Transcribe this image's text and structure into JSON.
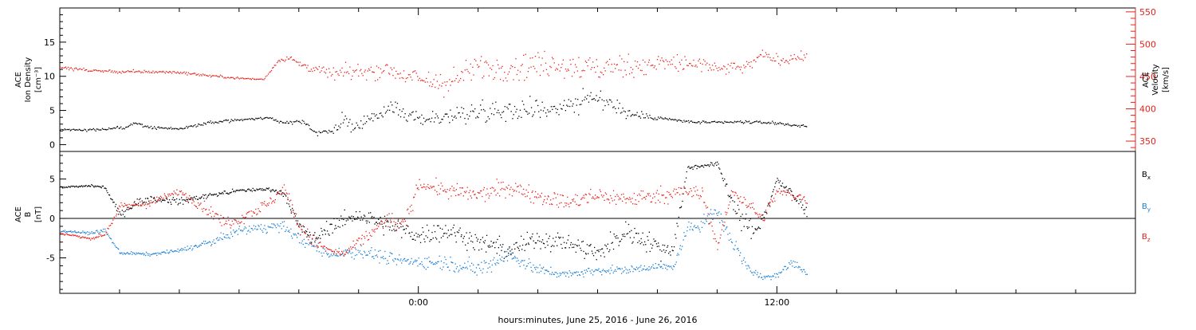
{
  "colors": {
    "black": "#000000",
    "red": "#e8201c",
    "blue": "#1a7fd4"
  },
  "chart_data": [
    {
      "type": "scatter",
      "panel": "top",
      "ylabel": [
        "ACE",
        "Ion Density",
        "[cm⁻³]"
      ],
      "ylabel_right": [
        "ACE",
        "Velocity",
        "[km/s]"
      ],
      "ylim": [
        -1,
        20
      ],
      "yticks": [
        "0",
        "5",
        "10",
        "15"
      ],
      "ylim_right": [
        334,
        556
      ],
      "yticks_right": [
        "350",
        "400",
        "450",
        "500",
        "550"
      ],
      "x_range_hours": [
        -12,
        24
      ],
      "data_end_hour": 13,
      "series": [
        {
          "key": "density",
          "axis": "left",
          "color": "black",
          "x": [
            -12,
            -11,
            -10,
            -9.5,
            -9,
            -8,
            -7,
            -6,
            -5,
            -4.5,
            -4,
            -3.7,
            -3.5,
            -3,
            -2.5,
            -2,
            -1,
            0,
            1,
            2,
            3,
            4,
            5,
            6,
            6.5,
            7,
            8,
            9,
            10,
            11,
            12,
            13
          ],
          "y": [
            2.3,
            2.2,
            2.5,
            3.3,
            2.6,
            2.4,
            3.3,
            3.7,
            4.0,
            3.2,
            3.6,
            3.0,
            1.8,
            2.0,
            3.5,
            2.5,
            5.5,
            3.8,
            4.2,
            5.0,
            5.3,
            5.2,
            6.0,
            6.8,
            6.0,
            4.5,
            4.0,
            3.4,
            3.3,
            3.4,
            3.2,
            2.7
          ],
          "spread": [
            0.3,
            0.3,
            0.5,
            0.5,
            0.5,
            0.3,
            0.5,
            0.4,
            0.4,
            0.5,
            0.6,
            0.6,
            0.7,
            0.8,
            2.5,
            1.5,
            2.0,
            2.0,
            2.5,
            3.0,
            3.0,
            3.0,
            3.0,
            3.0,
            2.5,
            2.0,
            0.6,
            0.5,
            0.4,
            0.4,
            0.4,
            0.4
          ]
        },
        {
          "key": "velocity",
          "axis": "right",
          "color": "red",
          "x": [
            -12,
            -11,
            -10,
            -9,
            -8,
            -7,
            -6,
            -5.2,
            -4.7,
            -4.3,
            -4,
            -3,
            -2,
            -1,
            0,
            1,
            2,
            3,
            4,
            5,
            6,
            7,
            8,
            9,
            10,
            11,
            11.5,
            12,
            13
          ],
          "y": [
            465,
            460,
            458,
            458,
            457,
            452,
            448,
            446,
            475,
            480,
            470,
            455,
            458,
            462,
            445,
            440,
            465,
            465,
            470,
            468,
            462,
            468,
            470,
            472,
            462,
            465,
            485,
            476,
            482
          ],
          "spread": [
            4,
            5,
            5,
            5,
            4,
            4,
            3,
            3,
            6,
            8,
            12,
            18,
            25,
            25,
            30,
            40,
            40,
            40,
            40,
            40,
            40,
            35,
            35,
            30,
            20,
            18,
            15,
            15,
            12
          ]
        }
      ]
    },
    {
      "type": "scatter",
      "panel": "bottom",
      "ylabel": [
        "ACE",
        "B",
        "[nT]"
      ],
      "ylim": [
        -9.5,
        8.5
      ],
      "yticks": [
        "-5",
        "0",
        "5"
      ],
      "x_range_hours": [
        -12,
        24
      ],
      "data_end_hour": 13,
      "xlabel": "hours:minutes, June 25, 2016 - June 26, 2016",
      "xticks": [
        {
          "hour": 0,
          "label": "0:00"
        },
        {
          "hour": 12,
          "label": "12:00"
        }
      ],
      "zero_line": true,
      "legend": [
        {
          "label": "B",
          "sub": "x",
          "color": "black"
        },
        {
          "label": "B",
          "sub": "y",
          "color": "blue"
        },
        {
          "label": "B",
          "sub": "z",
          "color": "red"
        }
      ],
      "series": [
        {
          "key": "bx",
          "color": "black",
          "x": [
            -12,
            -11,
            -10.5,
            -10,
            -9.5,
            -9,
            -8,
            -7,
            -6,
            -5,
            -4.5,
            -4,
            -3.5,
            -3,
            -2,
            -1,
            0,
            1,
            2,
            3,
            4,
            5,
            6,
            7,
            8,
            8.5,
            9,
            10,
            10.3,
            10.8,
            11.3,
            12,
            12.5,
            13
          ],
          "y": [
            4.0,
            4.2,
            4.0,
            0.5,
            2.0,
            2.5,
            2.2,
            3.0,
            3.6,
            3.8,
            3.2,
            -1.0,
            -2.5,
            -1.0,
            0.5,
            -1.0,
            -2.0,
            -1.5,
            -3.0,
            -4.0,
            -2.5,
            -3.0,
            -4.5,
            -1.5,
            -3.5,
            -4.0,
            6.5,
            7.0,
            4.0,
            0.0,
            -2.0,
            5.0,
            3.0,
            1.0
          ],
          "spread": [
            0.25,
            0.3,
            0.3,
            0.8,
            1.0,
            1.0,
            0.8,
            0.6,
            0.4,
            0.4,
            0.8,
            1.5,
            1.5,
            2.0,
            2.0,
            2.5,
            2.5,
            2.5,
            2.5,
            2.5,
            2.5,
            2.5,
            2.5,
            2.5,
            2.5,
            2.5,
            0.6,
            0.5,
            1.5,
            2.5,
            2.5,
            1.0,
            1.5,
            1.5
          ]
        },
        {
          "key": "by",
          "color": "blue",
          "x": [
            -12,
            -11,
            -10.5,
            -10,
            -9,
            -8,
            -7,
            -6,
            -5,
            -4.5,
            -4,
            -3,
            -2,
            -1,
            0,
            1,
            2,
            3,
            4,
            5,
            6,
            7,
            8,
            8.5,
            9,
            10,
            10.5,
            11,
            11.5,
            12,
            12.5,
            13
          ],
          "y": [
            -1.5,
            -1.8,
            -1.5,
            -4.3,
            -4.5,
            -4.0,
            -3.0,
            -1.5,
            -1.0,
            -1.0,
            -2.5,
            -4.5,
            -4.0,
            -5.0,
            -5.5,
            -5.5,
            -6.5,
            -4.5,
            -6.5,
            -7.0,
            -6.5,
            -6.5,
            -6.0,
            -6.2,
            -1.5,
            1.0,
            -3.0,
            -6.0,
            -7.5,
            -7.0,
            -5.5,
            -7.0
          ],
          "spread": [
            0.3,
            0.3,
            0.5,
            0.4,
            0.4,
            0.5,
            0.8,
            1.2,
            1.2,
            1.2,
            1.5,
            1.5,
            1.8,
            1.5,
            1.5,
            2.0,
            2.0,
            2.0,
            1.5,
            1.0,
            1.0,
            1.0,
            0.8,
            0.8,
            2.0,
            2.0,
            2.0,
            1.5,
            0.8,
            0.8,
            1.2,
            0.8
          ]
        },
        {
          "key": "bz",
          "color": "red",
          "x": [
            -12,
            -11,
            -10.5,
            -10,
            -9,
            -8,
            -7,
            -6.5,
            -6,
            -5,
            -4.5,
            -4,
            -3.5,
            -3,
            -2.5,
            -2,
            -1,
            -0.5,
            0,
            1,
            2,
            3,
            4,
            5,
            6,
            7,
            8,
            9,
            9.5,
            10,
            10.5,
            11,
            11.5,
            12,
            13
          ],
          "y": [
            -1.8,
            -2.5,
            -2.0,
            1.5,
            2.0,
            3.5,
            1.0,
            -0.5,
            0.0,
            2.0,
            4.0,
            -1.0,
            -3.0,
            -4.0,
            -4.5,
            -3.0,
            0.0,
            -1.0,
            4.5,
            3.5,
            3.0,
            4.0,
            3.0,
            2.0,
            3.0,
            2.5,
            3.0,
            3.5,
            3.0,
            -3.5,
            3.5,
            2.0,
            0.0,
            3.5,
            2.5
          ],
          "spread": [
            0.3,
            0.3,
            0.4,
            0.8,
            1.0,
            0.8,
            1.5,
            1.5,
            1.5,
            1.5,
            1.2,
            2.0,
            1.5,
            1.0,
            0.8,
            1.5,
            2.0,
            2.0,
            1.5,
            2.0,
            2.0,
            2.0,
            2.0,
            2.0,
            2.0,
            2.0,
            2.0,
            2.0,
            2.0,
            1.0,
            1.5,
            1.5,
            1.5,
            1.2,
            1.2
          ]
        }
      ]
    }
  ]
}
